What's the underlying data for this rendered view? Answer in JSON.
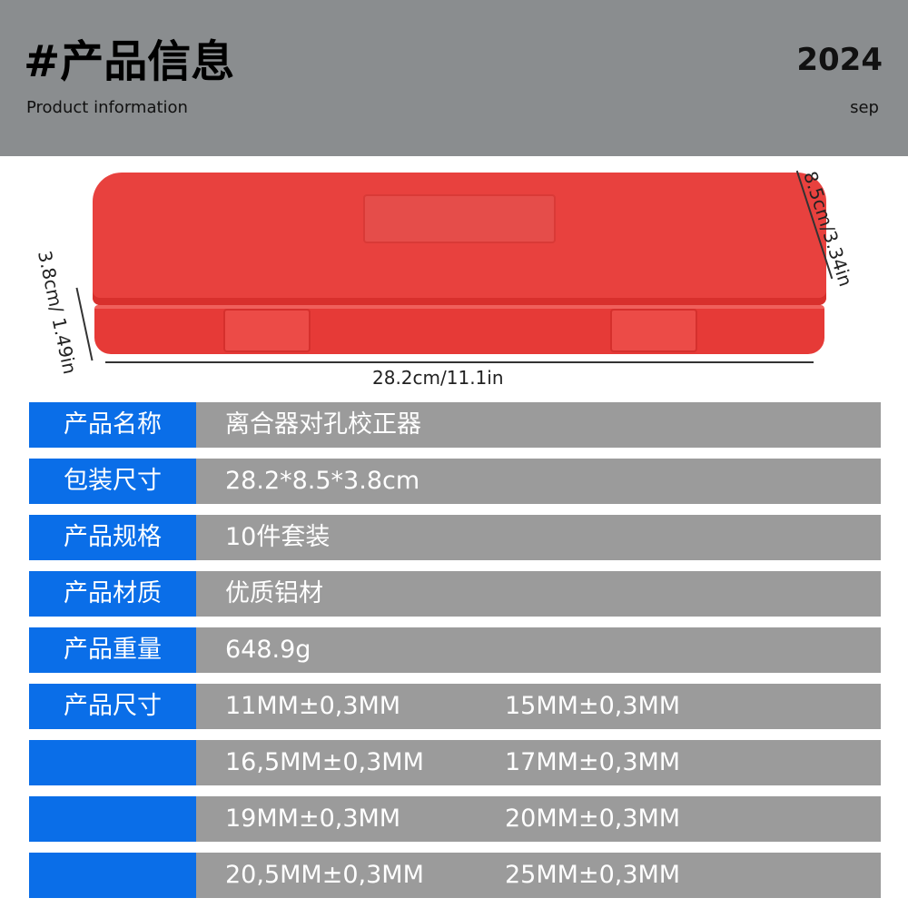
{
  "header": {
    "title": "#产品信息",
    "subtitle": "Product information",
    "year": "2024",
    "month": "sep"
  },
  "product_image": {
    "color": "#e8413e",
    "dimensions": {
      "length": "28.2cm/11.1in",
      "width": "8.5cm/3.34in",
      "height": "3.8cm/ 1.49in"
    }
  },
  "specs": [
    {
      "label": "产品名称",
      "values": [
        "离合器对孔校正器"
      ]
    },
    {
      "label": "包装尺寸",
      "values": [
        "28.2*8.5*3.8cm"
      ]
    },
    {
      "label": "产品规格",
      "values": [
        "10件套装"
      ]
    },
    {
      "label": "产品材质",
      "values": [
        "优质铝材"
      ]
    },
    {
      "label": "产品重量",
      "values": [
        "648.9g"
      ]
    },
    {
      "label": "产品尺寸",
      "values": [
        "11MM±0,3MM",
        "15MM±0,3MM"
      ]
    },
    {
      "label": "",
      "values": [
        "16,5MM±0,3MM",
        "17MM±0,3MM"
      ]
    },
    {
      "label": "",
      "values": [
        "19MM±0,3MM",
        "20MM±0,3MM"
      ]
    },
    {
      "label": "",
      "values": [
        "20,5MM±0,3MM",
        "25MM±0,3MM"
      ]
    }
  ],
  "colors": {
    "label_bg": "#0a6ee8",
    "value_bg": "#9b9b9b",
    "header_bg": "#8a8d8f"
  }
}
